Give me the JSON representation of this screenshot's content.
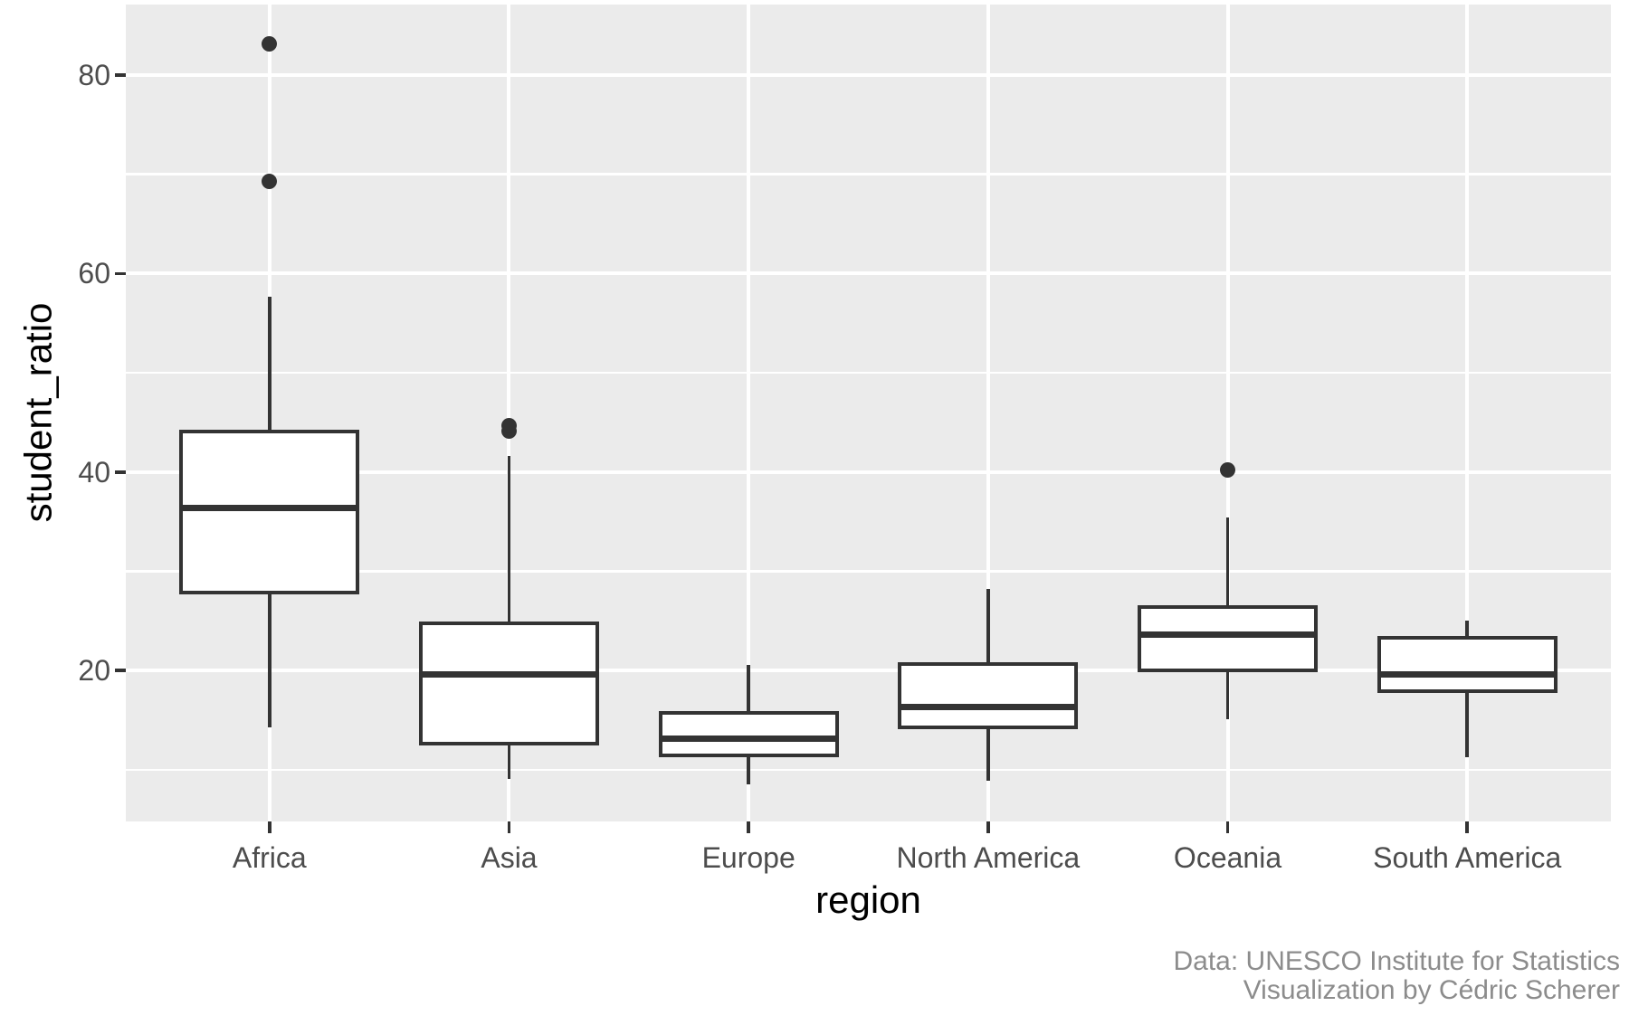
{
  "chart_data": {
    "type": "boxplot",
    "title": "",
    "xlabel": "region",
    "ylabel": "student_ratio",
    "caption": {
      "line1": "Data: UNESCO Institute for Statistics",
      "line2": "Visualization by Cédric Scherer"
    },
    "categories": [
      "Africa",
      "Asia",
      "Europe",
      "North America",
      "Oceania",
      "South America"
    ],
    "ylim": [
      4.8,
      87.1
    ],
    "yticks": [
      20,
      40,
      60,
      80
    ],
    "yticks_minor": [
      10,
      30,
      50,
      70
    ],
    "grid": true,
    "legend_position": "none",
    "series": [
      {
        "name": "Africa",
        "whisker_low": 14.3,
        "q1": 27.7,
        "median": 36.4,
        "q3": 44.3,
        "whisker_high": 57.7,
        "outliers": [
          69.3,
          83.1
        ]
      },
      {
        "name": "Asia",
        "whisker_low": 9.1,
        "q1": 12.5,
        "median": 19.6,
        "q3": 24.9,
        "whisker_high": 41.6,
        "outliers": [
          44.1,
          44.7
        ]
      },
      {
        "name": "Europe",
        "whisker_low": 8.5,
        "q1": 11.3,
        "median": 13.1,
        "q3": 15.9,
        "whisker_high": 20.6,
        "outliers": []
      },
      {
        "name": "North America",
        "whisker_low": 8.9,
        "q1": 14.1,
        "median": 16.3,
        "q3": 20.8,
        "whisker_high": 28.2,
        "outliers": []
      },
      {
        "name": "Oceania",
        "whisker_low": 15.1,
        "q1": 19.8,
        "median": 23.6,
        "q3": 26.6,
        "whisker_high": 35.4,
        "outliers": [
          40.2
        ]
      },
      {
        "name": "South America",
        "whisker_low": 11.3,
        "q1": 17.7,
        "median": 19.6,
        "q3": 23.5,
        "whisker_high": 25.0,
        "outliers": []
      }
    ],
    "colors": {
      "panel_background": "#EBEBEB",
      "gridline": "#FFFFFF",
      "box_stroke": "#333333",
      "box_fill": "#FFFFFF",
      "outlier": "#333333",
      "tick_mark": "#333333",
      "tick_label": "#4D4D4D",
      "axis_title": "#000000",
      "caption": "#8C8C8C"
    }
  }
}
